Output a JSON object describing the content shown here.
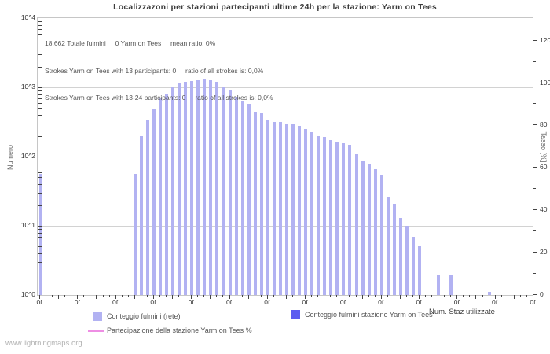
{
  "title": "Localizzazoni per stazioni partecipanti ultime 24h per la stazione: Yarm on Tees",
  "watermark": "www.lightningmaps.org",
  "annotations": [
    "18.662 Totale fulmini     0 Yarm on Tees     mean ratio: 0%",
    "Strokes Yarm on Tees with 13 participants: 0     ratio of all strokes is: 0,0%",
    "Strokes Yarm on Tees with 13-24 participants: 0     ratio of all strokes is: 0,0%"
  ],
  "axes": {
    "left_label": "Numero",
    "right_label": "Tasso [%]",
    "left_tick_labels": [
      "10^0",
      "10^1",
      "10^2",
      "10^3",
      "10^4"
    ],
    "right_tick_labels": [
      "0",
      "20",
      "40",
      "60",
      "80",
      "100",
      "120"
    ],
    "x_tick_labels": [
      "0f",
      "0f",
      "0f",
      "0f",
      "0f",
      "0f",
      "0f",
      "0f",
      "0f",
      "0f",
      "0f",
      "0f",
      "0f",
      "0f"
    ]
  },
  "legend": {
    "network": {
      "label": "Conteggio fulmini (rete)",
      "swatch_color": "#b2b2f2"
    },
    "station": {
      "label": "Conteggio fulmini stazione Yarm on Tees",
      "swatch_color": "#5c5cf0"
    },
    "participation": {
      "label": "Partecipazione della stazione Yarm on Tees %",
      "swatch_color": "#ee8ee4"
    },
    "right_axis_note": "Num. Staz utilizzate"
  },
  "colors": {
    "bar_network": "#b2b2f2",
    "bar_station": "#5c5cf0",
    "participation_line": "#ee8ee4",
    "gridline": "#d2d2d2",
    "axis_border": "#c6c6c6",
    "tick": "#444444",
    "text": "#555555"
  },
  "chart_data": {
    "type": "bar",
    "title": "Localizzazoni per stazioni partecipanti ultime 24h per la stazione: Yarm on Tees",
    "xlabel": "",
    "ylabel_left": "Numero",
    "ylabel_right": "Tasso [%]",
    "y_scale": "log10",
    "ylim": [
      1,
      10000
    ],
    "right_ylim": [
      0,
      120
    ],
    "grid": "horizontal decades 10^1 10^2 10^3",
    "legend_position": "bottom",
    "x_slot_count": 79,
    "x_label_every": 6,
    "x_tick_label": "0f",
    "series": [
      {
        "name": "Conteggio fulmini (rete)",
        "type": "bar",
        "color": "#b2b2f2",
        "bars": [
          {
            "slot": 0,
            "value": 56
          },
          {
            "slot": 15,
            "value": 56
          },
          {
            "slot": 16,
            "value": 195
          },
          {
            "slot": 17,
            "value": 330
          },
          {
            "slot": 18,
            "value": 490
          },
          {
            "slot": 19,
            "value": 710
          },
          {
            "slot": 20,
            "value": 810
          },
          {
            "slot": 21,
            "value": 1000
          },
          {
            "slot": 22,
            "value": 1130
          },
          {
            "slot": 23,
            "value": 1190
          },
          {
            "slot": 24,
            "value": 1230
          },
          {
            "slot": 25,
            "value": 1260
          },
          {
            "slot": 26,
            "value": 1330
          },
          {
            "slot": 27,
            "value": 1260
          },
          {
            "slot": 28,
            "value": 1190
          },
          {
            "slot": 29,
            "value": 1020
          },
          {
            "slot": 30,
            "value": 920
          },
          {
            "slot": 31,
            "value": 740
          },
          {
            "slot": 32,
            "value": 620
          },
          {
            "slot": 33,
            "value": 570
          },
          {
            "slot": 34,
            "value": 450
          },
          {
            "slot": 35,
            "value": 420
          },
          {
            "slot": 36,
            "value": 340
          },
          {
            "slot": 37,
            "value": 315
          },
          {
            "slot": 38,
            "value": 320
          },
          {
            "slot": 39,
            "value": 300
          },
          {
            "slot": 40,
            "value": 290
          },
          {
            "slot": 41,
            "value": 280
          },
          {
            "slot": 42,
            "value": 250
          },
          {
            "slot": 43,
            "value": 225
          },
          {
            "slot": 44,
            "value": 200
          },
          {
            "slot": 45,
            "value": 190
          },
          {
            "slot": 46,
            "value": 175
          },
          {
            "slot": 47,
            "value": 166
          },
          {
            "slot": 48,
            "value": 158
          },
          {
            "slot": 49,
            "value": 148
          },
          {
            "slot": 50,
            "value": 107
          },
          {
            "slot": 51,
            "value": 85
          },
          {
            "slot": 52,
            "value": 77
          },
          {
            "slot": 53,
            "value": 66
          },
          {
            "slot": 54,
            "value": 55
          },
          {
            "slot": 55,
            "value": 26
          },
          {
            "slot": 56,
            "value": 21
          },
          {
            "slot": 57,
            "value": 13
          },
          {
            "slot": 58,
            "value": 10
          },
          {
            "slot": 59,
            "value": 7
          },
          {
            "slot": 60,
            "value": 5
          },
          {
            "slot": 63,
            "value": 2
          },
          {
            "slot": 65,
            "value": 2
          },
          {
            "slot": 71,
            "value": 1.12
          }
        ]
      },
      {
        "name": "Conteggio fulmini stazione Yarm on Tees",
        "type": "bar",
        "color": "#5c5cf0",
        "bars": []
      },
      {
        "name": "Partecipazione della stazione Yarm on Tees %",
        "type": "line",
        "color": "#ee8ee4",
        "values": []
      }
    ]
  }
}
